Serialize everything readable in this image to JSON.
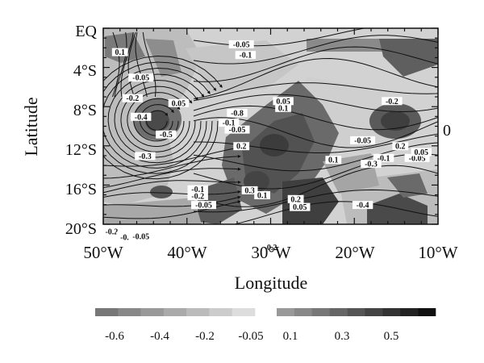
{
  "map": {
    "y_axis_title": "Latitude",
    "x_axis_title": "Longitude",
    "lat_ticks": [
      "EQ",
      "4°S",
      "8°S",
      "12°S",
      "16°S",
      "20°S"
    ],
    "lon_ticks": [
      "50°W",
      "40°W",
      "30°W",
      "20°W",
      "10°W"
    ],
    "right_label": "0",
    "contour_labels": [
      {
        "text": "0.1",
        "lon": -48,
        "lat": -2.6
      },
      {
        "text": "-0.05",
        "lon": -45.5,
        "lat": -5.2
      },
      {
        "text": "-0.2",
        "lon": -46.5,
        "lat": -7.3
      },
      {
        "text": "0.05",
        "lon": -41,
        "lat": -7.8
      },
      {
        "text": "-0.4",
        "lon": -45.5,
        "lat": -9.2
      },
      {
        "text": "-0.5",
        "lon": -42.5,
        "lat": -11.0
      },
      {
        "text": "-0.3",
        "lon": -45,
        "lat": -13.2
      },
      {
        "text": "-0.05",
        "lon": -33.5,
        "lat": -1.8
      },
      {
        "text": "-0.1",
        "lon": -33,
        "lat": -2.9
      },
      {
        "text": "-0.8",
        "lon": -34,
        "lat": -8.8
      },
      {
        "text": "-0.1",
        "lon": -35,
        "lat": -9.8
      },
      {
        "text": "-0.05",
        "lon": -34,
        "lat": -10.5
      },
      {
        "text": "0.2",
        "lon": -33.5,
        "lat": -12.2
      },
      {
        "text": "0.05",
        "lon": -28.5,
        "lat": -7.6
      },
      {
        "text": "0.1",
        "lon": -28.5,
        "lat": -8.3
      },
      {
        "text": "0.1",
        "lon": -22.5,
        "lat": -13.6
      },
      {
        "text": "-0.05",
        "lon": -19,
        "lat": -11.6
      },
      {
        "text": "-0.2",
        "lon": -15.5,
        "lat": -7.6
      },
      {
        "text": "0.2",
        "lon": -14.5,
        "lat": -12.2
      },
      {
        "text": "-0.1",
        "lon": -16.5,
        "lat": -13.4
      },
      {
        "text": "-0.05",
        "lon": -12.5,
        "lat": -13.4
      },
      {
        "text": "0.05",
        "lon": -12,
        "lat": -12.8
      },
      {
        "text": "-0.3",
        "lon": -18,
        "lat": -14.0
      },
      {
        "text": "-0.1",
        "lon": -38.7,
        "lat": -16.6
      },
      {
        "text": "-0.2",
        "lon": -38.7,
        "lat": -17.3
      },
      {
        "text": "-0.05",
        "lon": -38,
        "lat": -18.2
      },
      {
        "text": "0.3",
        "lon": -32.5,
        "lat": -16.7
      },
      {
        "text": "0.1",
        "lon": -31,
        "lat": -17.2
      },
      {
        "text": "0.2",
        "lon": -27,
        "lat": -17.6
      },
      {
        "text": "0.05",
        "lon": -26.5,
        "lat": -18.4
      },
      {
        "text": "-0.4",
        "lon": -19,
        "lat": -18.2
      },
      {
        "text": "-0.2",
        "lon": -49,
        "lat": -20.9
      },
      {
        "text": "-0.1",
        "lon": -47.2,
        "lat": -21.5
      },
      {
        "text": "-0.05",
        "lon": -45.5,
        "lat": -21.4
      },
      {
        "text": "-0.2",
        "lon": -30,
        "lat": -22.5
      }
    ]
  },
  "colorbar": {
    "negative_labels": [
      "-0.6",
      "-0.4",
      "-0.2",
      "-0.05"
    ],
    "positive_labels": [
      "0.1",
      "0.3",
      "0.5"
    ],
    "negative_colors": [
      "#777777",
      "#888888",
      "#999999",
      "#aaaaaa",
      "#bbbbbb",
      "#cccccc",
      "#dddddd"
    ],
    "positive_colors": [
      "#999999",
      "#888888",
      "#777777",
      "#666666",
      "#555555",
      "#444444",
      "#333333",
      "#222222",
      "#111111"
    ]
  }
}
